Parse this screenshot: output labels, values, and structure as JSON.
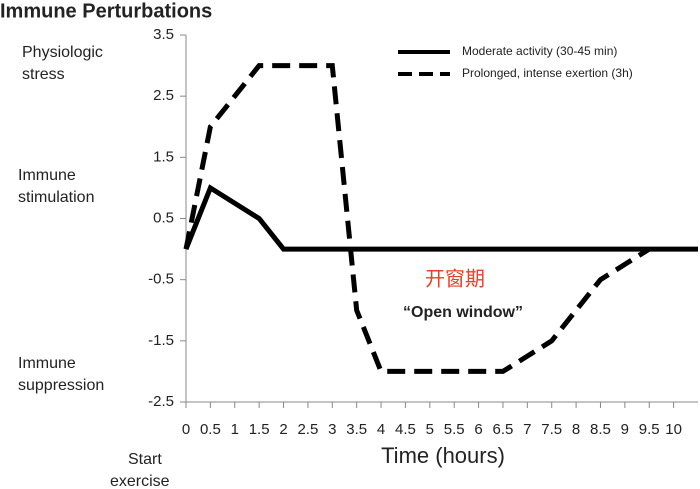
{
  "chart_data": {
    "type": "line",
    "title": "Immune Perturbations",
    "xlabel": "Time (hours)",
    "xlim": [
      0,
      10.5
    ],
    "ylim": [
      -2.5,
      3.5
    ],
    "xticks": [
      0,
      0.5,
      1,
      1.5,
      2,
      2.5,
      3,
      3.5,
      4,
      4.5,
      5,
      5.5,
      6,
      6.5,
      7,
      7.5,
      8,
      8.5,
      9,
      9.5,
      10
    ],
    "yticks": [
      3.5,
      2.5,
      1.5,
      0.5,
      -0.5,
      -1.5,
      -2.5
    ],
    "legend": "upper right",
    "series": [
      {
        "name": "Moderate activity (30-45 min)",
        "color": "#000000",
        "dash": "solid",
        "x": [
          0,
          0.5,
          1.5,
          2,
          10.5
        ],
        "values": [
          0,
          1,
          0.5,
          0,
          0
        ]
      },
      {
        "name": "Prolonged, intense exertion (3h)",
        "color": "#000000",
        "dash": "dashed",
        "x": [
          0,
          0.5,
          1.5,
          3,
          3.5,
          4,
          6.5,
          7.5,
          8.5,
          9.5
        ],
        "values": [
          0,
          2,
          3,
          3,
          -1,
          -2,
          -2,
          -1.5,
          -0.5,
          0
        ]
      }
    ],
    "side_labels": [
      [
        "Physiologic",
        "stress"
      ],
      [
        "Immune",
        "stimulation"
      ],
      [
        "Immune",
        "suppression"
      ],
      [
        "Start",
        "exercise"
      ]
    ],
    "annotations": [
      "开窗期",
      "“Open window”"
    ]
  }
}
